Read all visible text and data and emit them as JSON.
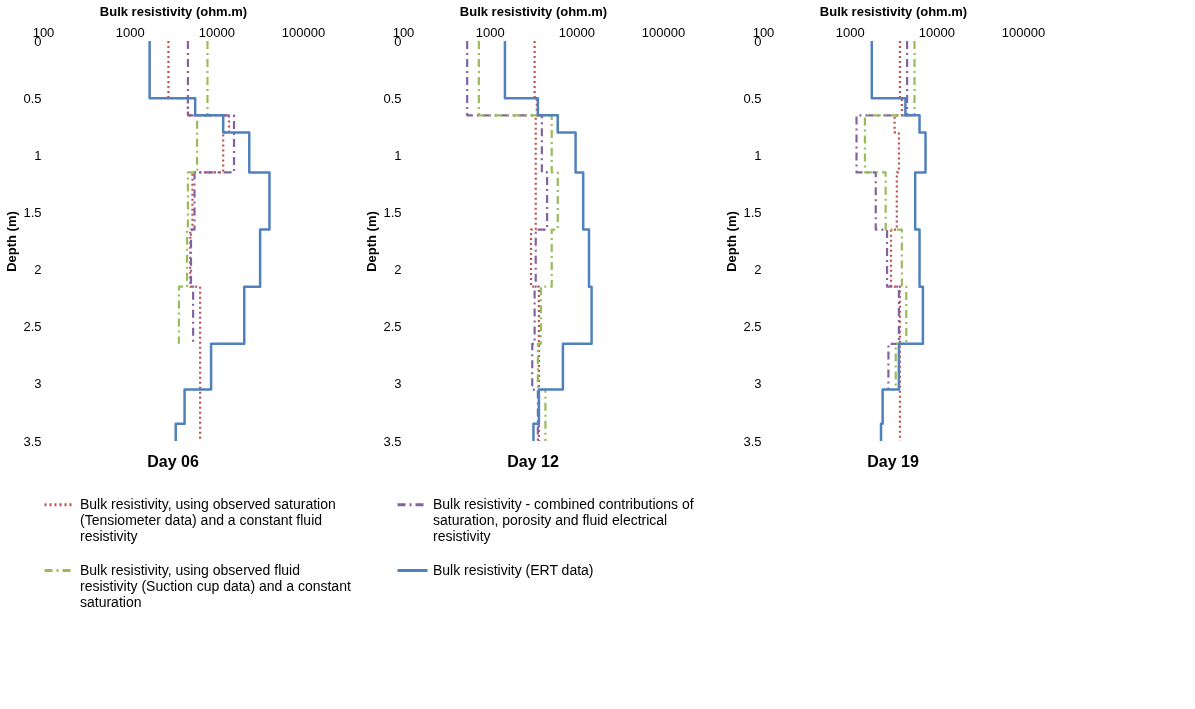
{
  "chart_data": [
    {
      "type": "step",
      "orientation": "horizontal",
      "title": "Day 06",
      "xlabel": "Bulk resistivity (ohm.m)",
      "ylabel": "Depth (m)",
      "log": "x",
      "xlim": [
        100,
        100000
      ],
      "xticks": [
        100,
        1000,
        10000,
        100000
      ],
      "ylim": [
        3.5,
        0
      ],
      "yticks": [
        0,
        0.5,
        1,
        1.5,
        2,
        2.5,
        3,
        3.5
      ],
      "grid": false,
      "legend": "bottom",
      "series": [
        {
          "name": "Bulk resistivity, using observed saturation (Tensiometer data) and a constant fluid resistivity",
          "color": "#c0504d",
          "line_style": "dotted",
          "x": [
            0,
            0.5,
            0.65,
            0.8,
            1.15,
            1.65,
            2.15,
            3.5
          ],
          "values": [
            2800,
            4700,
            14000,
            12000,
            5300,
            5000,
            6500,
            6500
          ]
        },
        {
          "name": "Bulk resistivity - combined contributions of saturation, porosity and fluid electrical resistivity",
          "color": "#8064a2",
          "line_style": "dashed",
          "x": [
            0,
            0.65,
            1.15,
            1.65,
            2.15,
            2.65
          ],
          "values": [
            4700,
            16000,
            5600,
            5100,
            5400,
            5400
          ]
        },
        {
          "name": "Bulk resistivity, using observed fluid resistivity (Suction cup data) and a constant saturation",
          "color": "#9bbb59",
          "line_style": "dashed",
          "x": [
            0,
            0.65,
            1.15,
            1.65,
            2.15,
            2.65
          ],
          "values": [
            7900,
            6000,
            4700,
            4600,
            3700,
            3700
          ]
        },
        {
          "name": "Bulk resistivity (ERT data)",
          "color": "#4f81bd",
          "line_style": "solid",
          "x": [
            0,
            0.5,
            0.65,
            0.8,
            1.15,
            1.65,
            2.15,
            2.65,
            3.05,
            3.35,
            3.5
          ],
          "values": [
            1700,
            5700,
            12000,
            24000,
            41000,
            32000,
            21000,
            8700,
            4300,
            3400,
            3400
          ]
        }
      ]
    },
    {
      "type": "step",
      "orientation": "horizontal",
      "title": "Day 12",
      "xlabel": "Bulk resistivity (ohm.m)",
      "ylabel": "Depth (m)",
      "log": "x",
      "xlim": [
        100,
        100000
      ],
      "xticks": [
        100,
        1000,
        10000,
        100000
      ],
      "ylim": [
        3.5,
        0
      ],
      "yticks": [
        0,
        0.5,
        1,
        1.5,
        2,
        2.5,
        3,
        3.5
      ],
      "grid": false,
      "series": [
        {
          "color": "#c0504d",
          "line_style": "dotted",
          "x": [
            0,
            0.5,
            0.65,
            1.65,
            2.15,
            3.5
          ],
          "values": [
            3300,
            3500,
            3400,
            3000,
            3700,
            3700
          ]
        },
        {
          "color": "#8064a2",
          "line_style": "dashed",
          "x": [
            0,
            0.65,
            1.15,
            1.65,
            2.15,
            2.65,
            3.05,
            3.5
          ],
          "values": [
            550,
            4000,
            4600,
            3400,
            3300,
            3100,
            3600,
            3600
          ]
        },
        {
          "color": "#9bbb59",
          "line_style": "dashed",
          "x": [
            0,
            0.65,
            1.15,
            1.65,
            2.15,
            2.65,
            3.05,
            3.5
          ],
          "values": [
            750,
            5200,
            6100,
            5200,
            3900,
            3600,
            4400,
            4400
          ]
        },
        {
          "color": "#4f81bd",
          "line_style": "solid",
          "x": [
            0,
            0.5,
            0.65,
            0.8,
            1.15,
            1.65,
            2.15,
            2.65,
            3.05,
            3.35,
            3.5
          ],
          "values": [
            1500,
            3600,
            6100,
            9800,
            12000,
            14000,
            15000,
            7000,
            3700,
            3200,
            3200
          ]
        }
      ]
    },
    {
      "type": "step",
      "orientation": "horizontal",
      "title": "Day 19",
      "xlabel": "Bulk resistivity (ohm.m)",
      "ylabel": "Depth (m)",
      "log": "x",
      "xlim": [
        100,
        100000
      ],
      "xticks": [
        100,
        1000,
        10000,
        100000
      ],
      "ylim": [
        3.5,
        0
      ],
      "yticks": [
        0,
        0.5,
        1,
        1.5,
        2,
        2.5,
        3,
        3.5
      ],
      "grid": false,
      "series": [
        {
          "color": "#c0504d",
          "line_style": "dotted",
          "x": [
            0,
            0.5,
            0.65,
            0.8,
            1.15,
            1.65,
            2.15,
            3.5
          ],
          "values": [
            3800,
            4000,
            3300,
            3700,
            3500,
            3000,
            3800,
            3800
          ]
        },
        {
          "color": "#8064a2",
          "line_style": "dashed",
          "x": [
            0,
            0.65,
            1.15,
            1.65,
            2.15,
            2.65,
            3.05
          ],
          "values": [
            4600,
            1200,
            2000,
            2700,
            3700,
            2800,
            2800
          ]
        },
        {
          "color": "#9bbb59",
          "line_style": "dashed",
          "x": [
            0,
            0.65,
            1.15,
            1.65,
            2.15,
            2.65,
            3.05
          ],
          "values": [
            5600,
            1500,
            2600,
            4000,
            4500,
            3400,
            3400
          ]
        },
        {
          "color": "#4f81bd",
          "line_style": "solid",
          "x": [
            0,
            0.5,
            0.65,
            0.8,
            1.15,
            1.65,
            2.15,
            2.65,
            3.05,
            3.35,
            3.5
          ],
          "values": [
            1800,
            4400,
            6400,
            7500,
            5700,
            6400,
            7000,
            3700,
            2400,
            2300,
            2300
          ]
        }
      ]
    }
  ]
}
